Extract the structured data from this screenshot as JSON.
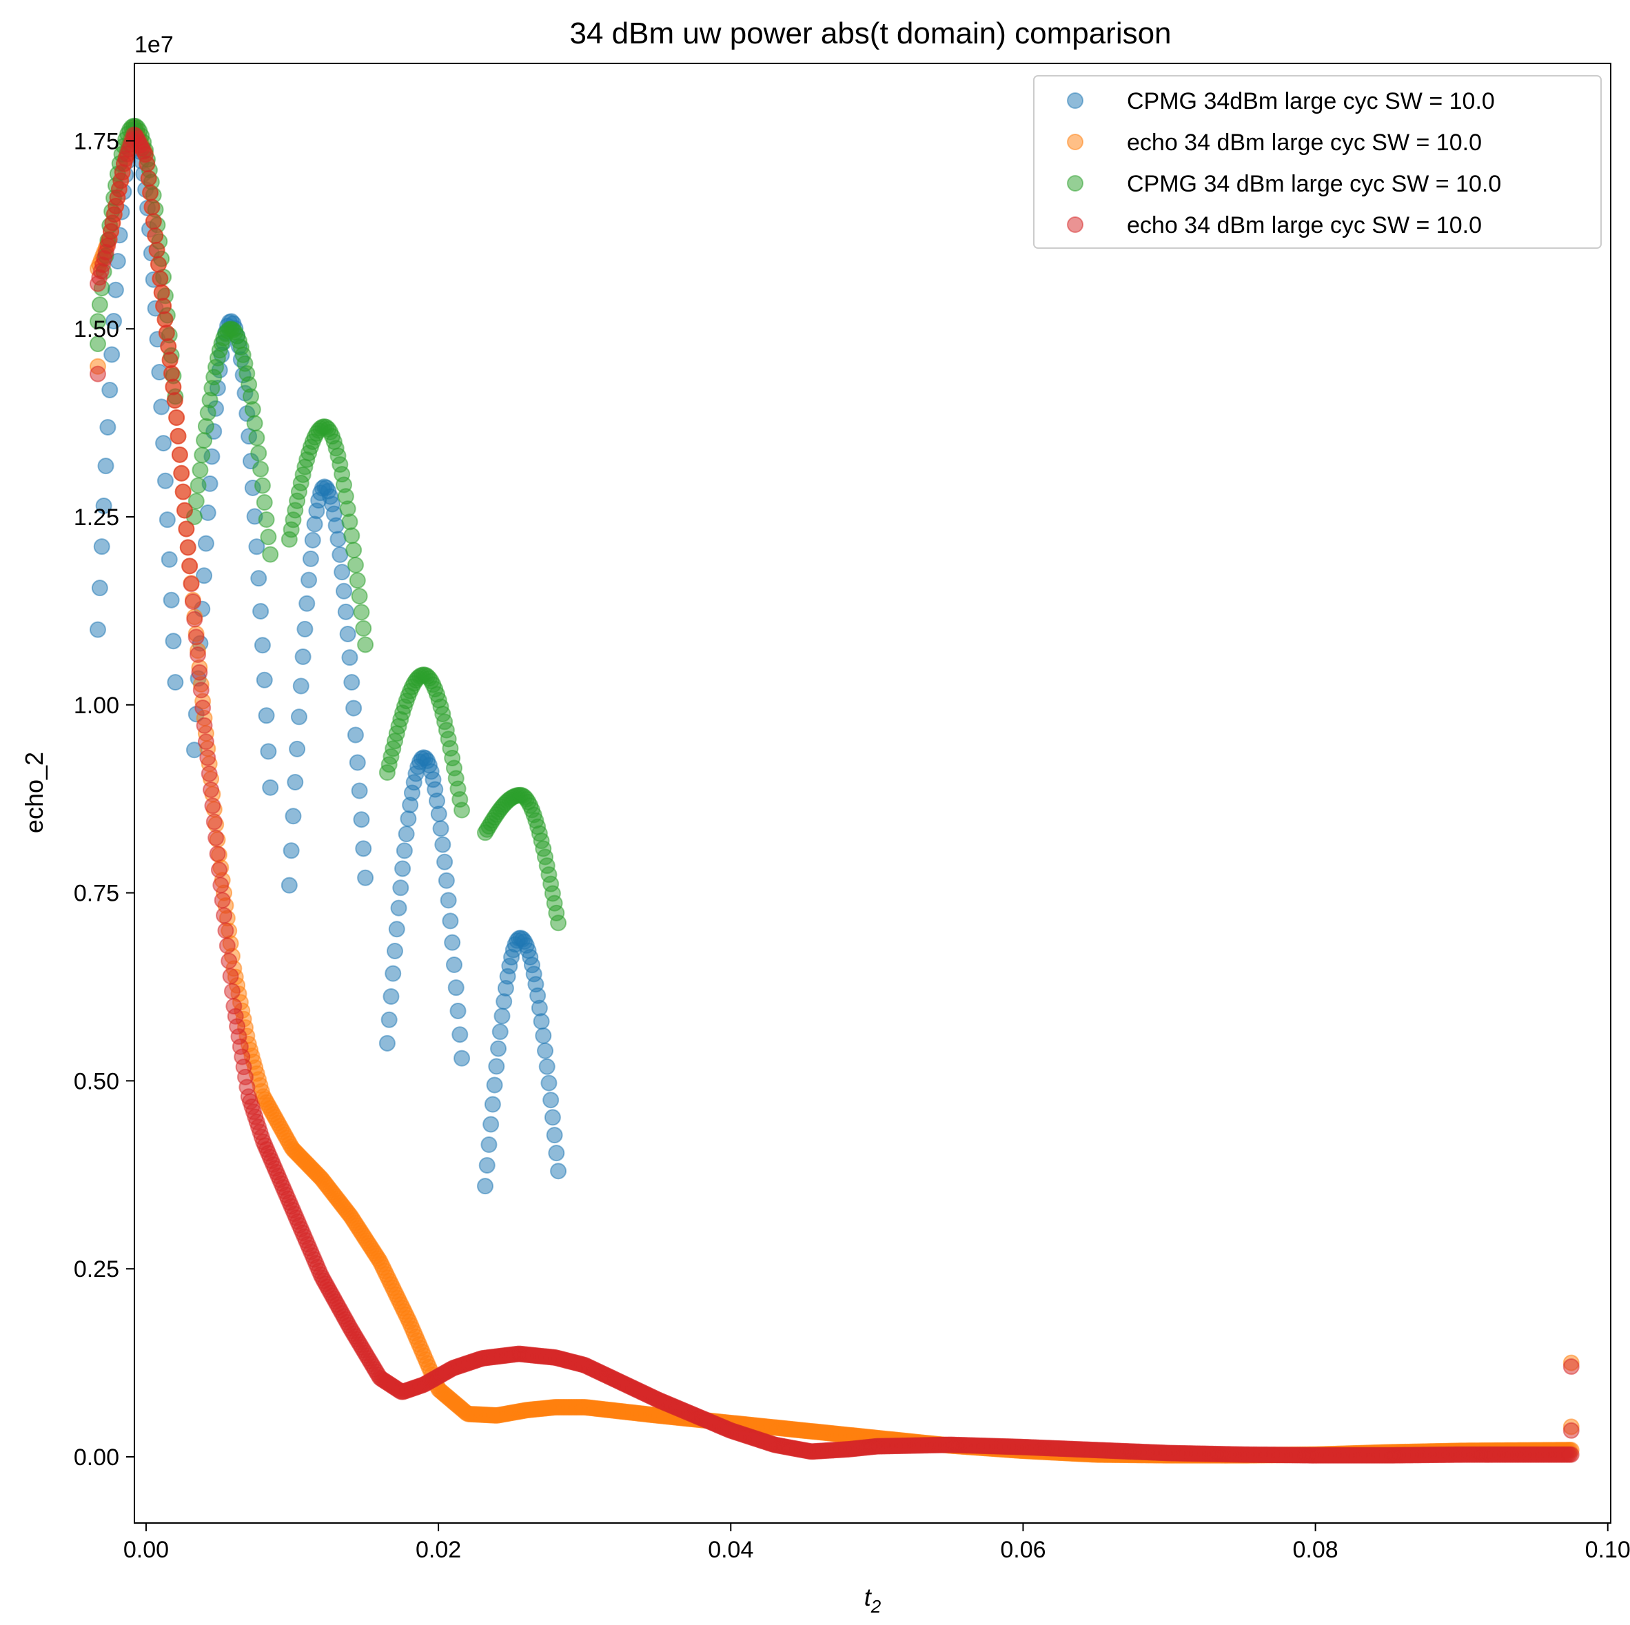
{
  "chart_data": {
    "type": "scatter",
    "title": "34 dBm uw power abs(t domain) comparison",
    "xlabel": "t",
    "xlabel_sub": "2",
    "ylabel": "echo_2",
    "y_offset_label": "1e7",
    "xlim": [
      -0.0008,
      0.1002
    ],
    "ylim": [
      -0.088,
      1.853
    ],
    "x_scale": 1,
    "y_scale_factor": 10000000,
    "xticks": [
      0.0,
      0.02,
      0.04,
      0.06,
      0.08,
      0.1
    ],
    "xtick_labels": [
      "0.00",
      "0.02",
      "0.04",
      "0.06",
      "0.08",
      "0.10"
    ],
    "yticks": [
      0.0,
      0.25,
      0.5,
      0.75,
      1.0,
      1.25,
      1.5,
      1.75
    ],
    "ytick_labels": [
      "0.00",
      "0.25",
      "0.50",
      "0.75",
      "1.00",
      "1.25",
      "1.50",
      "1.75"
    ],
    "grid": false,
    "legend_position": "top-right",
    "marker_alpha": 0.5,
    "series": [
      {
        "name": "CPMG 34dBm large cyc SW = 10.0",
        "color": "#1f77b4",
        "segments": [
          {
            "x0": -0.0033,
            "x1": 0.002,
            "n": 40,
            "peak_x": -0.0008,
            "peak_y": 1.75,
            "left_y": 1.1,
            "right_y": 1.03
          },
          {
            "x0": 0.0033,
            "x1": 0.0085,
            "n": 40,
            "peak_x": 0.0058,
            "peak_y": 1.51,
            "left_y": 0.94,
            "right_y": 0.89
          },
          {
            "x0": 0.0098,
            "x1": 0.015,
            "n": 40,
            "peak_x": 0.0122,
            "peak_y": 1.29,
            "left_y": 0.76,
            "right_y": 0.77
          },
          {
            "x0": 0.0165,
            "x1": 0.0216,
            "n": 40,
            "peak_x": 0.019,
            "peak_y": 0.93,
            "left_y": 0.55,
            "right_y": 0.53
          },
          {
            "x0": 0.0232,
            "x1": 0.0282,
            "n": 40,
            "peak_x": 0.0256,
            "peak_y": 0.69,
            "left_y": 0.36,
            "right_y": 0.38
          }
        ]
      },
      {
        "name": "echo 34 dBm large cyc SW = 10.0",
        "color": "#ff7f0e",
        "curve": [
          [
            -0.0033,
            1.58
          ],
          [
            -0.0025,
            1.62
          ],
          [
            -0.0015,
            1.72
          ],
          [
            -0.0008,
            1.77
          ],
          [
            0.0,
            1.73
          ],
          [
            0.001,
            1.56
          ],
          [
            0.002,
            1.4
          ],
          [
            0.003,
            1.18
          ],
          [
            0.004,
            0.98
          ],
          [
            0.005,
            0.8
          ],
          [
            0.006,
            0.65
          ],
          [
            0.007,
            0.55
          ],
          [
            0.008,
            0.48
          ],
          [
            0.01,
            0.41
          ],
          [
            0.012,
            0.37
          ],
          [
            0.014,
            0.32
          ],
          [
            0.016,
            0.26
          ],
          [
            0.018,
            0.18
          ],
          [
            0.02,
            0.09
          ],
          [
            0.022,
            0.057
          ],
          [
            0.024,
            0.055
          ],
          [
            0.026,
            0.062
          ],
          [
            0.028,
            0.066
          ],
          [
            0.03,
            0.066
          ],
          [
            0.035,
            0.055
          ],
          [
            0.04,
            0.045
          ],
          [
            0.045,
            0.035
          ],
          [
            0.05,
            0.025
          ],
          [
            0.055,
            0.015
          ],
          [
            0.06,
            0.008
          ],
          [
            0.065,
            0.003
          ],
          [
            0.07,
            0.002
          ],
          [
            0.075,
            0.002
          ],
          [
            0.08,
            0.003
          ],
          [
            0.085,
            0.006
          ],
          [
            0.09,
            0.008
          ],
          [
            0.0975,
            0.009
          ]
        ],
        "extra_points": [
          [
            -0.0033,
            1.45
          ],
          [
            0.0975,
            0.04
          ],
          [
            0.0975,
            0.125
          ]
        ]
      },
      {
        "name": "CPMG 34 dBm large cyc SW = 10.0",
        "color": "#2ca02c",
        "segments": [
          {
            "x0": -0.0033,
            "x1": 0.002,
            "n": 40,
            "peak_x": -0.0008,
            "peak_y": 1.77,
            "left_y": 1.51,
            "right_y": 1.41
          },
          {
            "x0": 0.0033,
            "x1": 0.0085,
            "n": 40,
            "peak_x": 0.0058,
            "peak_y": 1.5,
            "left_y": 1.25,
            "right_y": 1.2
          },
          {
            "x0": 0.0098,
            "x1": 0.015,
            "n": 40,
            "peak_x": 0.0122,
            "peak_y": 1.37,
            "left_y": 1.22,
            "right_y": 1.08
          },
          {
            "x0": 0.0165,
            "x1": 0.0216,
            "n": 40,
            "peak_x": 0.019,
            "peak_y": 1.04,
            "left_y": 0.91,
            "right_y": 0.86
          },
          {
            "x0": 0.0232,
            "x1": 0.0282,
            "n": 40,
            "peak_x": 0.0256,
            "peak_y": 0.88,
            "left_y": 0.83,
            "right_y": 0.71
          }
        ],
        "extra_points": [
          [
            -0.0033,
            1.48
          ]
        ]
      },
      {
        "name": "echo 34 dBm large cyc SW = 10.0",
        "color": "#d62728",
        "curve": [
          [
            -0.0033,
            1.56
          ],
          [
            -0.0025,
            1.62
          ],
          [
            -0.0015,
            1.72
          ],
          [
            -0.0008,
            1.76
          ],
          [
            0.0,
            1.73
          ],
          [
            0.001,
            1.56
          ],
          [
            0.002,
            1.4
          ],
          [
            0.003,
            1.18
          ],
          [
            0.004,
            0.97
          ],
          [
            0.005,
            0.78
          ],
          [
            0.006,
            0.6
          ],
          [
            0.007,
            0.48
          ],
          [
            0.008,
            0.42
          ],
          [
            0.01,
            0.33
          ],
          [
            0.012,
            0.24
          ],
          [
            0.014,
            0.17
          ],
          [
            0.016,
            0.105
          ],
          [
            0.0175,
            0.086
          ],
          [
            0.019,
            0.096
          ],
          [
            0.021,
            0.118
          ],
          [
            0.023,
            0.131
          ],
          [
            0.0255,
            0.137
          ],
          [
            0.028,
            0.132
          ],
          [
            0.03,
            0.122
          ],
          [
            0.035,
            0.076
          ],
          [
            0.04,
            0.035
          ],
          [
            0.043,
            0.016
          ],
          [
            0.0455,
            0.007
          ],
          [
            0.048,
            0.01
          ],
          [
            0.05,
            0.014
          ],
          [
            0.055,
            0.016
          ],
          [
            0.06,
            0.013
          ],
          [
            0.065,
            0.009
          ],
          [
            0.07,
            0.005
          ],
          [
            0.075,
            0.003
          ],
          [
            0.08,
            0.002
          ],
          [
            0.085,
            0.002
          ],
          [
            0.09,
            0.003
          ],
          [
            0.0975,
            0.003
          ]
        ],
        "extra_points": [
          [
            -0.0033,
            1.44
          ],
          [
            0.0975,
            0.035
          ],
          [
            0.0975,
            0.12
          ]
        ]
      }
    ]
  }
}
